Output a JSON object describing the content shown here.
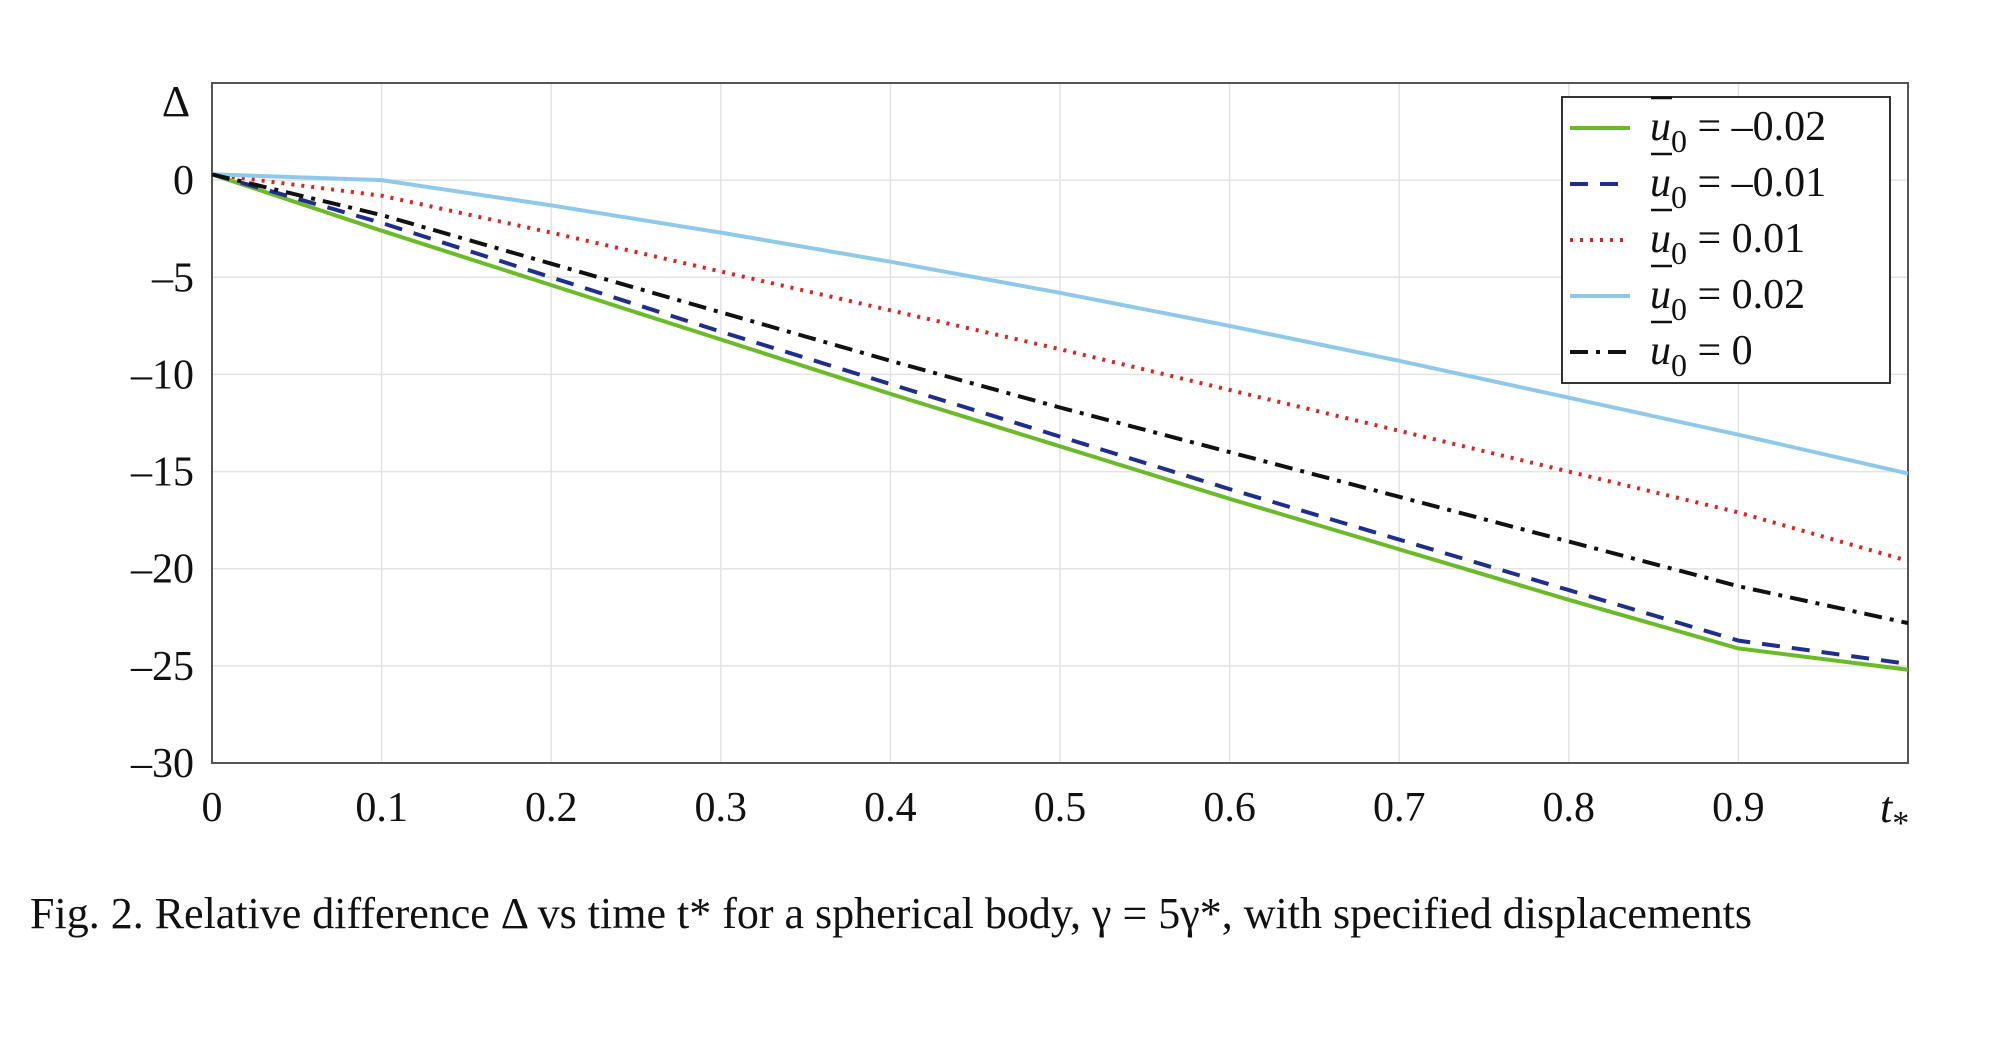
{
  "chart_data": {
    "type": "line",
    "xlabel": "t",
    "xlabel_sub": "*",
    "ylabel": "Δ",
    "xlim": [
      0,
      1
    ],
    "ylim": [
      -30,
      5
    ],
    "x_ticks": [
      "0",
      "0.1",
      "0.2",
      "0.3",
      "0.4",
      "0.5",
      "0.6",
      "0.7",
      "0.8",
      "0.9"
    ],
    "y_ticks": [
      "0",
      "–5",
      "–10",
      "–15",
      "–20",
      "–25",
      "–30"
    ],
    "grid": true,
    "legend_position": "top-right",
    "x": [
      0,
      0.1,
      0.2,
      0.3,
      0.4,
      0.5,
      0.6,
      0.7,
      0.8,
      0.9,
      1.0
    ],
    "series": [
      {
        "name": "u0 = –0.02",
        "legend_rest": " = –0.02",
        "color": "#6aba2a",
        "dash": "solid",
        "values": [
          0.3,
          -2.6,
          -5.4,
          -8.2,
          -11.0,
          -13.7,
          -16.4,
          -19.0,
          -21.6,
          -24.1,
          -25.2
        ]
      },
      {
        "name": "u0 = –0.01",
        "legend_rest": " = –0.01",
        "color": "#1f2e8c",
        "dash": "dashed",
        "values": [
          0.3,
          -2.2,
          -5.0,
          -7.8,
          -10.5,
          -13.2,
          -15.9,
          -18.5,
          -21.1,
          -23.7,
          -24.9
        ]
      },
      {
        "name": "u0 = 0.01",
        "legend_rest": " = 0.01",
        "color": "#e0211e",
        "dash": "dotted",
        "values": [
          0.3,
          -0.8,
          -2.7,
          -4.7,
          -6.7,
          -8.7,
          -10.8,
          -12.9,
          -15.0,
          -17.1,
          -19.6
        ]
      },
      {
        "name": "u0 = 0.02",
        "legend_rest": " = 0.02",
        "color": "#8fc9ea",
        "dash": "solid",
        "values": [
          0.3,
          0.0,
          -1.3,
          -2.7,
          -4.2,
          -5.8,
          -7.5,
          -9.3,
          -11.2,
          -13.1,
          -15.1
        ]
      },
      {
        "name": "u0 = 0",
        "legend_rest": " = 0",
        "color": "#111111",
        "dash": "dashdot",
        "values": [
          0.3,
          -1.8,
          -4.3,
          -6.8,
          -9.3,
          -11.7,
          -14.0,
          -16.3,
          -18.6,
          -20.9,
          -22.8
        ]
      }
    ]
  },
  "caption": "Fig. 2. Relative difference Δ vs time t* for a spherical body, γ = 5γ*, with specified displacements"
}
